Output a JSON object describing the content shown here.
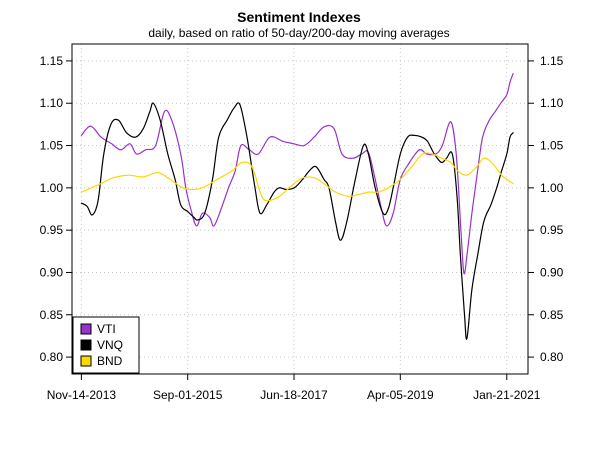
{
  "chart_data": {
    "type": "line",
    "title": "Sentiment Indexes",
    "subtitle": "daily, based on ratio of 50-day/200-day moving averages",
    "xlabel": "",
    "ylabel": "",
    "x_ticks": [
      "Nov-14-2013",
      "Sep-01-2015",
      "Jun-18-2017",
      "Apr-05-2019",
      "Jan-21-2021"
    ],
    "y_ticks": [
      "0.80",
      "0.85",
      "0.90",
      "0.95",
      "1.00",
      "1.05",
      "1.10",
      "1.15"
    ],
    "ylim": [
      0.78,
      1.17
    ],
    "xlim": [
      "2013-09-17",
      "2021-06-01"
    ],
    "grid": true,
    "legend_position": "bottom-left",
    "series": [
      {
        "name": "VTI",
        "color": "#9932CC",
        "points": [
          [
            "2013-11-14",
            1.062
          ],
          [
            "2014-01-10",
            1.073
          ],
          [
            "2014-03-15",
            1.06
          ],
          [
            "2014-05-20",
            1.052
          ],
          [
            "2014-07-15",
            1.045
          ],
          [
            "2014-09-10",
            1.052
          ],
          [
            "2014-10-20",
            1.04
          ],
          [
            "2014-12-15",
            1.045
          ],
          [
            "2015-02-15",
            1.05
          ],
          [
            "2015-04-10",
            1.09
          ],
          [
            "2015-05-25",
            1.08
          ],
          [
            "2015-07-20",
            1.04
          ],
          [
            "2015-08-20",
            1.0
          ],
          [
            "2015-09-20",
            0.975
          ],
          [
            "2015-10-25",
            0.955
          ],
          [
            "2015-12-01",
            0.97
          ],
          [
            "2016-01-15",
            0.965
          ],
          [
            "2016-02-10",
            0.955
          ],
          [
            "2016-03-25",
            0.975
          ],
          [
            "2016-05-10",
            1.0
          ],
          [
            "2016-06-20",
            1.02
          ],
          [
            "2016-07-25",
            1.05
          ],
          [
            "2016-09-15",
            1.045
          ],
          [
            "2016-11-10",
            1.04
          ],
          [
            "2017-01-20",
            1.06
          ],
          [
            "2017-04-10",
            1.055
          ],
          [
            "2017-06-18",
            1.052
          ],
          [
            "2017-08-20",
            1.05
          ],
          [
            "2017-10-20",
            1.06
          ],
          [
            "2017-12-20",
            1.072
          ],
          [
            "2018-02-20",
            1.07
          ],
          [
            "2018-04-10",
            1.04
          ],
          [
            "2018-06-15",
            1.035
          ],
          [
            "2018-08-10",
            1.04
          ],
          [
            "2018-09-20",
            1.042
          ],
          [
            "2018-11-01",
            1.01
          ],
          [
            "2018-12-10",
            0.975
          ],
          [
            "2019-01-10",
            0.955
          ],
          [
            "2019-02-20",
            0.97
          ],
          [
            "2019-04-05",
            1.01
          ],
          [
            "2019-06-01",
            1.03
          ],
          [
            "2019-08-01",
            1.045
          ],
          [
            "2019-09-15",
            1.04
          ],
          [
            "2019-11-10",
            1.04
          ],
          [
            "2019-12-20",
            1.05
          ],
          [
            "2020-02-10",
            1.078
          ],
          [
            "2020-03-15",
            1.04
          ],
          [
            "2020-04-10",
            0.96
          ],
          [
            "2020-05-01",
            0.9
          ],
          [
            "2020-05-20",
            0.92
          ],
          [
            "2020-06-20",
            0.97
          ],
          [
            "2020-07-25",
            1.02
          ],
          [
            "2020-08-25",
            1.06
          ],
          [
            "2020-10-05",
            1.08
          ],
          [
            "2020-11-10",
            1.09
          ],
          [
            "2020-12-15",
            1.1
          ],
          [
            "2021-01-21",
            1.11
          ],
          [
            "2021-02-10",
            1.125
          ],
          [
            "2021-03-01",
            1.135
          ]
        ]
      },
      {
        "name": "VNQ",
        "color": "#000000",
        "points": [
          [
            "2013-11-14",
            0.982
          ],
          [
            "2013-12-20",
            0.978
          ],
          [
            "2014-01-20",
            0.968
          ],
          [
            "2014-02-25",
            0.985
          ],
          [
            "2014-04-01",
            1.04
          ],
          [
            "2014-05-15",
            1.075
          ],
          [
            "2014-07-01",
            1.08
          ],
          [
            "2014-08-20",
            1.065
          ],
          [
            "2014-10-15",
            1.06
          ],
          [
            "2014-12-01",
            1.07
          ],
          [
            "2015-01-10",
            1.09
          ],
          [
            "2015-02-01",
            1.1
          ],
          [
            "2015-03-15",
            1.08
          ],
          [
            "2015-05-01",
            1.04
          ],
          [
            "2015-06-15",
            1.01
          ],
          [
            "2015-07-20",
            0.98
          ],
          [
            "2015-09-01",
            0.972
          ],
          [
            "2015-10-10",
            0.965
          ],
          [
            "2015-11-01",
            0.962
          ],
          [
            "2015-12-15",
            0.97
          ],
          [
            "2016-02-01",
            1.01
          ],
          [
            "2016-03-10",
            1.06
          ],
          [
            "2016-05-01",
            1.08
          ],
          [
            "2016-06-15",
            1.095
          ],
          [
            "2016-07-20",
            1.098
          ],
          [
            "2016-09-01",
            1.06
          ],
          [
            "2016-10-20",
            1.0
          ],
          [
            "2016-11-20",
            0.97
          ],
          [
            "2017-01-01",
            0.98
          ],
          [
            "2017-02-15",
            0.995
          ],
          [
            "2017-03-20",
            1.0
          ],
          [
            "2017-05-01",
            0.998
          ],
          [
            "2017-06-20",
            1.0
          ],
          [
            "2017-08-10",
            1.01
          ],
          [
            "2017-09-20",
            1.02
          ],
          [
            "2017-11-01",
            1.025
          ],
          [
            "2017-12-20",
            1.01
          ],
          [
            "2018-01-20",
            1.0
          ],
          [
            "2018-03-01",
            0.96
          ],
          [
            "2018-04-01",
            0.938
          ],
          [
            "2018-05-10",
            0.96
          ],
          [
            "2018-07-01",
            1.01
          ],
          [
            "2018-08-20",
            1.05
          ],
          [
            "2018-09-20",
            1.04
          ],
          [
            "2018-11-01",
            1.0
          ],
          [
            "2018-12-20",
            0.97
          ],
          [
            "2019-01-20",
            0.975
          ],
          [
            "2019-02-20",
            1.0
          ],
          [
            "2019-04-05",
            1.04
          ],
          [
            "2019-05-20",
            1.06
          ],
          [
            "2019-07-01",
            1.062
          ],
          [
            "2019-08-15",
            1.06
          ],
          [
            "2019-09-20",
            1.055
          ],
          [
            "2019-11-01",
            1.04
          ],
          [
            "2019-12-15",
            1.03
          ],
          [
            "2020-01-15",
            1.035
          ],
          [
            "2020-02-20",
            1.04
          ],
          [
            "2020-03-20",
            0.99
          ],
          [
            "2020-04-10",
            0.92
          ],
          [
            "2020-05-05",
            0.85
          ],
          [
            "2020-05-20",
            0.822
          ],
          [
            "2020-06-20",
            0.88
          ],
          [
            "2020-07-25",
            0.92
          ],
          [
            "2020-09-01",
            0.96
          ],
          [
            "2020-10-15",
            0.98
          ],
          [
            "2020-11-20",
            1.0
          ],
          [
            "2020-12-20",
            1.02
          ],
          [
            "2021-01-21",
            1.04
          ],
          [
            "2021-02-10",
            1.06
          ],
          [
            "2021-03-01",
            1.065
          ]
        ]
      },
      {
        "name": "BND",
        "color": "#FFD700",
        "points": [
          [
            "2013-11-14",
            0.995
          ],
          [
            "2014-01-15",
            1.0
          ],
          [
            "2014-03-15",
            1.005
          ],
          [
            "2014-06-01",
            1.012
          ],
          [
            "2014-09-01",
            1.015
          ],
          [
            "2014-12-01",
            1.013
          ],
          [
            "2015-03-01",
            1.018
          ],
          [
            "2015-05-15",
            1.01
          ],
          [
            "2015-08-01",
            1.0
          ],
          [
            "2015-10-01",
            0.998
          ],
          [
            "2015-12-01",
            1.0
          ],
          [
            "2016-03-01",
            1.01
          ],
          [
            "2016-06-01",
            1.02
          ],
          [
            "2016-08-01",
            1.03
          ],
          [
            "2016-10-01",
            1.025
          ],
          [
            "2016-12-01",
            0.99
          ],
          [
            "2017-01-15",
            0.985
          ],
          [
            "2017-03-20",
            0.99
          ],
          [
            "2017-06-18",
            1.005
          ],
          [
            "2017-08-15",
            1.012
          ],
          [
            "2017-10-20",
            1.012
          ],
          [
            "2017-12-20",
            1.005
          ],
          [
            "2018-03-01",
            0.995
          ],
          [
            "2018-05-20",
            0.99
          ],
          [
            "2018-07-20",
            0.992
          ],
          [
            "2018-09-20",
            0.995
          ],
          [
            "2018-11-20",
            0.995
          ],
          [
            "2019-01-20",
            1.0
          ],
          [
            "2019-04-05",
            1.01
          ],
          [
            "2019-06-15",
            1.025
          ],
          [
            "2019-08-20",
            1.04
          ],
          [
            "2019-10-20",
            1.04
          ],
          [
            "2019-12-15",
            1.035
          ],
          [
            "2020-02-10",
            1.03
          ],
          [
            "2020-03-25",
            1.02
          ],
          [
            "2020-05-20",
            1.015
          ],
          [
            "2020-07-20",
            1.025
          ],
          [
            "2020-09-01",
            1.035
          ],
          [
            "2020-10-20",
            1.03
          ],
          [
            "2020-12-20",
            1.015
          ],
          [
            "2021-01-21",
            1.01
          ],
          [
            "2021-03-01",
            1.005
          ]
        ]
      }
    ]
  }
}
